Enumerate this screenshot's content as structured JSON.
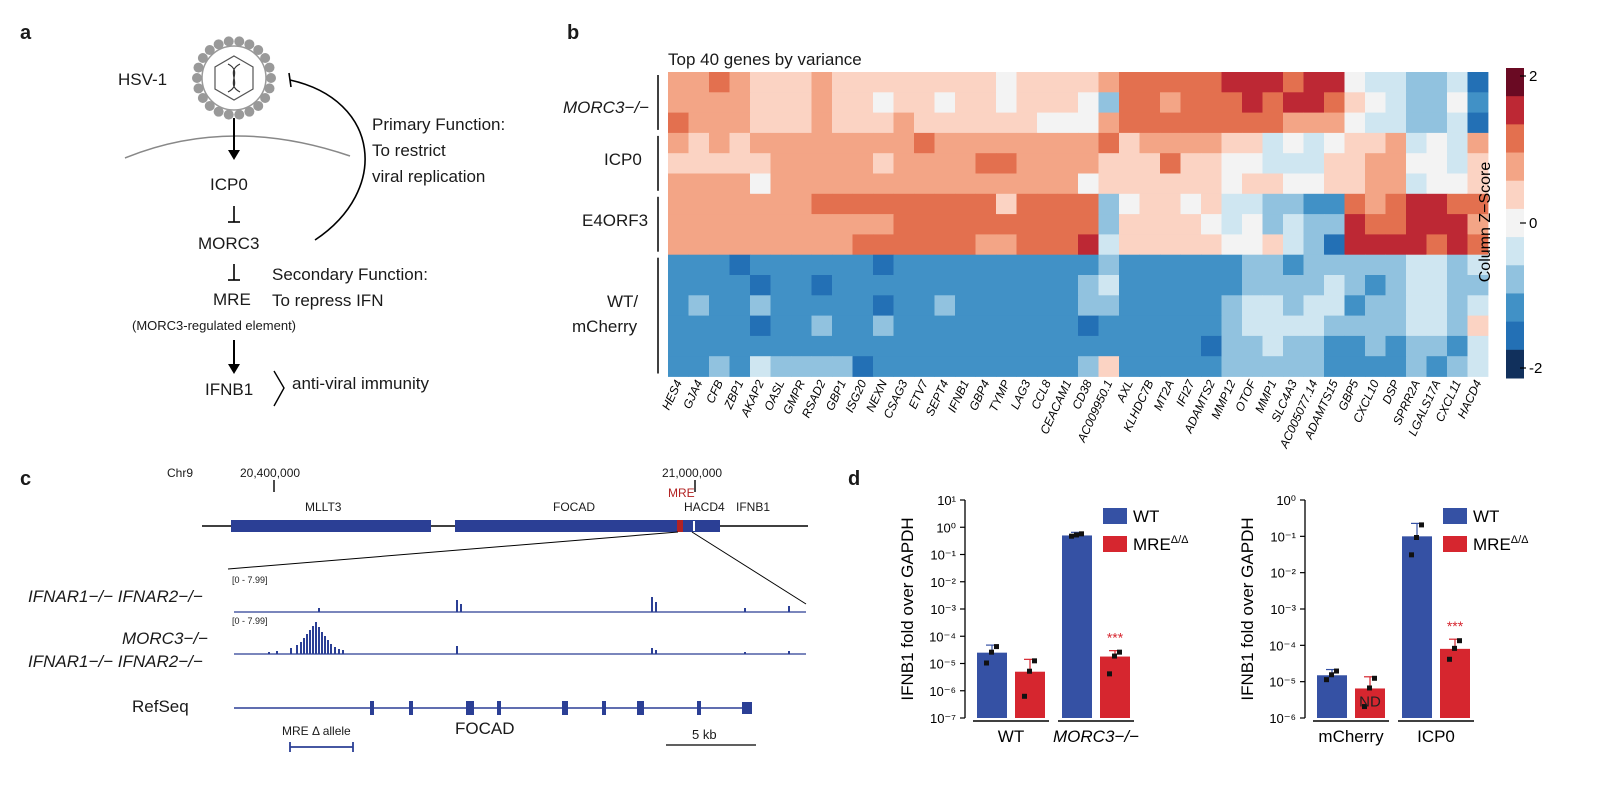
{
  "panel_a": {
    "label": "a",
    "hsv": "HSV-1",
    "icp0": "ICP0",
    "morc3": "MORC3",
    "mre": "MRE",
    "mre_full": "(MORC3-regulated element)",
    "ifnb1": "IFNB1",
    "antiviral": "anti-viral immunity",
    "primary": [
      "Primary Function:",
      "To restrict",
      "viral replication"
    ],
    "secondary": [
      "Secondary Function:",
      "To repress IFN"
    ]
  },
  "panel_b": {
    "label": "b",
    "title": "Top 40 genes by variance",
    "row_groups": [
      "MORC3−/−",
      "ICP0",
      "E4ORF3",
      "WT/",
      "mCherry"
    ],
    "colorbar_title": "Column Z−Score",
    "colorbar_ticks": [
      "2",
      "0",
      "-2"
    ],
    "genes": [
      "HES4",
      "GJA4",
      "CFB",
      "ZBP1",
      "AKAP2",
      "OASL",
      "GMPR",
      "RSAD2",
      "GBP1",
      "ISG20",
      "NEXN",
      "CSAG3",
      "ETV7",
      "SEPT4",
      "IFNB1",
      "GBP4",
      "TYMP",
      "LAG3",
      "CCL8",
      "CEACAM1",
      "CD38",
      "AC009950.1",
      "AXL",
      "KLHDC7B",
      "MT2A",
      "IFI27",
      "ADAMTS2",
      "MMP12",
      "OTOF",
      "MMP1",
      "SLC4A3",
      "AC005077.14",
      "ADAMTS15",
      "GBP5",
      "CXCL10",
      "DSP",
      "SPRR2A",
      "LGALS17A",
      "CXCL11",
      "HACD4"
    ]
  },
  "chart_data": [
    {
      "type": "heatmap",
      "title": "Top 40 genes by variance",
      "rows": 15,
      "columns": [
        "HES4",
        "GJA4",
        "CFB",
        "ZBP1",
        "AKAP2",
        "OASL",
        "GMPR",
        "RSAD2",
        "GBP1",
        "ISG20",
        "NEXN",
        "CSAG3",
        "ETV7",
        "SEPT4",
        "IFNB1",
        "GBP4",
        "TYMP",
        "LAG3",
        "CCL8",
        "CEACAM1",
        "CD38",
        "AC009950.1",
        "AXL",
        "KLHDC7B",
        "MT2A",
        "IFI27",
        "ADAMTS2",
        "MMP12",
        "OTOF",
        "MMP1",
        "SLC4A3",
        "AC005077.14",
        "ADAMTS15",
        "GBP5",
        "CXCL10",
        "DSP",
        "SPRR2A",
        "LGALS17A",
        "CXCL11",
        "HACD4"
      ],
      "row_groups": [
        {
          "name": "MORC3−/−",
          "rows": 3
        },
        {
          "name": "ICP0",
          "rows": 3
        },
        {
          "name": "E4ORF3",
          "rows": 3
        },
        {
          "name": "WT/ mCherry",
          "rows": 6
        }
      ],
      "scale": [
        -2,
        2
      ],
      "values": [
        [
          1,
          1,
          1.5,
          1,
          0.5,
          0.5,
          0.5,
          1,
          0.5,
          0.5,
          0.5,
          0.5,
          0.5,
          0.5,
          0.5,
          0.5,
          0,
          0.5,
          0.5,
          0.5,
          0.5,
          1,
          1.5,
          1.5,
          1.5,
          1.5,
          1.5,
          2,
          2,
          2,
          1.5,
          2,
          2,
          0,
          -0.5,
          -0.5,
          -1,
          -1,
          -0.5,
          -2
        ],
        [
          1,
          1,
          1,
          1,
          0.5,
          0.5,
          0.5,
          1,
          0.5,
          0.5,
          0,
          0.5,
          0.5,
          0,
          0.5,
          0.5,
          0,
          0.5,
          0.5,
          0.5,
          0,
          -1,
          1.5,
          1.5,
          1,
          1.5,
          1.5,
          1.5,
          2,
          1.5,
          2,
          2,
          1.5,
          0.5,
          0,
          -0.5,
          -1,
          -1,
          0,
          -1.5
        ],
        [
          1.5,
          1,
          1,
          1,
          0.5,
          0.5,
          0.5,
          1,
          0.5,
          0.5,
          0.5,
          1,
          0.5,
          0.5,
          0.5,
          0.5,
          0.5,
          0.5,
          0,
          0,
          0,
          1,
          1.5,
          1.5,
          1.5,
          1.5,
          1.5,
          1.5,
          1.5,
          1.5,
          1,
          1,
          1,
          0,
          -0.5,
          -0.5,
          -1,
          -1,
          -0.5,
          -2
        ],
        [
          1,
          0.5,
          1,
          0.5,
          1,
          1,
          1,
          1,
          1,
          1,
          1,
          1,
          1.5,
          1,
          1,
          1,
          1,
          1,
          1,
          1,
          1,
          1.5,
          0.5,
          1,
          1,
          1,
          1,
          0.5,
          0.5,
          -0.5,
          0,
          -0.5,
          0,
          0.5,
          0.5,
          1,
          -0.5,
          0,
          -0.5,
          1
        ],
        [
          0.5,
          0.5,
          0.5,
          0.5,
          0.5,
          1,
          1,
          1,
          1,
          1,
          0.5,
          1,
          1,
          1,
          1,
          1.5,
          1.5,
          1,
          1,
          1,
          1,
          0.5,
          0.5,
          0.5,
          1.5,
          0.5,
          0.5,
          0,
          0,
          -0.5,
          -0.5,
          -0.5,
          0.5,
          0.5,
          1,
          1,
          0,
          0,
          -0.5,
          0.5
        ],
        [
          1,
          1,
          1,
          1,
          0,
          1,
          1,
          1,
          1,
          1,
          1,
          1,
          1,
          1,
          1,
          1,
          1,
          1,
          1,
          1,
          0,
          0.5,
          0.5,
          0.5,
          0.5,
          0.5,
          0.5,
          0,
          0.5,
          0.5,
          0,
          0,
          0.5,
          0.5,
          1,
          1,
          -0.5,
          0,
          0,
          0.5
        ],
        [
          1,
          1,
          1,
          1,
          1,
          1,
          1,
          1.5,
          1.5,
          1.5,
          1.5,
          1.5,
          1.5,
          1.5,
          1.5,
          1.5,
          0.5,
          1.5,
          1.5,
          1.5,
          1.5,
          -1,
          0,
          0.5,
          0.5,
          0,
          0.5,
          -0.5,
          -0.5,
          -1,
          -1,
          -1.5,
          -1.5,
          1.5,
          1,
          1.5,
          2,
          2,
          1.5,
          1.5
        ],
        [
          1,
          1,
          1,
          1,
          1,
          1,
          1,
          1,
          1,
          1,
          1,
          1.5,
          1.5,
          1.5,
          1.5,
          1.5,
          1.5,
          1.5,
          1.5,
          1.5,
          1.5,
          -1,
          0.5,
          0.5,
          0.5,
          0.5,
          0,
          -0.5,
          0,
          -1,
          -0.5,
          -1,
          -1,
          2,
          1.5,
          1.5,
          2,
          2,
          2,
          1
        ],
        [
          1,
          1,
          1,
          1,
          1,
          1,
          1,
          1,
          1,
          1.5,
          1.5,
          1.5,
          1.5,
          1.5,
          1.5,
          1,
          1,
          1.5,
          1.5,
          1.5,
          2,
          -0.5,
          0.5,
          0.5,
          0.5,
          0.5,
          0.5,
          0,
          0,
          0.5,
          -0.5,
          -1,
          -2,
          2,
          2,
          2,
          2,
          1.5,
          2,
          1.5
        ],
        [
          -1.5,
          -1.5,
          -1.5,
          -2,
          -1.5,
          -1.5,
          -1.5,
          -1.5,
          -1.5,
          -1.5,
          -2,
          -1.5,
          -1.5,
          -1.5,
          -1.5,
          -1.5,
          -1.5,
          -1.5,
          -1.5,
          -1.5,
          -1.5,
          -1,
          -1.5,
          -1.5,
          -1.5,
          -1.5,
          -1.5,
          -1.5,
          -1,
          -1,
          -1.5,
          -1,
          -1,
          -1,
          -1,
          -1,
          -0.5,
          -0.5,
          -1,
          -0.5
        ],
        [
          -1.5,
          -1.5,
          -1.5,
          -1.5,
          -2,
          -1.5,
          -1.5,
          -2,
          -1.5,
          -1.5,
          -1.5,
          -1.5,
          -1.5,
          -1.5,
          -1.5,
          -1.5,
          -1.5,
          -1.5,
          -1.5,
          -1.5,
          -1,
          -0.5,
          -1.5,
          -1.5,
          -1.5,
          -1.5,
          -1.5,
          -1.5,
          -1,
          -1,
          -1,
          -1,
          -0.5,
          -1,
          -1.5,
          -1,
          -0.5,
          -0.5,
          -1,
          -1
        ],
        [
          -1.5,
          -1,
          -1.5,
          -1.5,
          -1,
          -1.5,
          -1.5,
          -1.5,
          -1.5,
          -1.5,
          -2,
          -1.5,
          -1.5,
          -1,
          -1.5,
          -1.5,
          -1.5,
          -1.5,
          -1.5,
          -1.5,
          -1,
          -1,
          -1.5,
          -1.5,
          -1.5,
          -1.5,
          -1.5,
          -1,
          -0.5,
          -0.5,
          -1,
          -0.5,
          -0.5,
          -1.5,
          -1,
          -1,
          -0.5,
          -0.5,
          -1,
          -0.5
        ],
        [
          -1.5,
          -1.5,
          -1.5,
          -1.5,
          -2,
          -1.5,
          -1.5,
          -1,
          -1.5,
          -1.5,
          -1,
          -1.5,
          -1.5,
          -1.5,
          -1.5,
          -1.5,
          -1.5,
          -1.5,
          -1.5,
          -1.5,
          -2,
          -1.5,
          -1.5,
          -1.5,
          -1.5,
          -1.5,
          -1.5,
          -1,
          -0.5,
          -0.5,
          -0.5,
          -0.5,
          -1,
          -1,
          -1,
          -1,
          -0.5,
          -0.5,
          -1,
          0.5
        ],
        [
          -1.5,
          -1.5,
          -1.5,
          -1.5,
          -1.5,
          -1.5,
          -1.5,
          -1.5,
          -1.5,
          -1.5,
          -1.5,
          -1.5,
          -1.5,
          -1.5,
          -1.5,
          -1.5,
          -1.5,
          -1.5,
          -1.5,
          -1.5,
          -1.5,
          -1.5,
          -1.5,
          -1.5,
          -1.5,
          -1.5,
          -2,
          -1,
          -1,
          -0.5,
          -1,
          -1,
          -1.5,
          -1.5,
          -1,
          -1.5,
          -1,
          -1,
          -1.5,
          -0.5
        ],
        [
          -1.5,
          -1.5,
          -1,
          -1.5,
          -0.5,
          -1,
          -1,
          -1,
          -1,
          -2,
          -1.5,
          -1.5,
          -1.5,
          -1.5,
          -1.5,
          -1.5,
          -1.5,
          -1.5,
          -1.5,
          -1.5,
          -1,
          0.5,
          -1.5,
          -1.5,
          -1.5,
          -1.5,
          -1.5,
          -1,
          -1,
          -1,
          -1,
          -1,
          -1.5,
          -1.5,
          -1.5,
          -1.5,
          -1,
          -1.5,
          -1,
          -0.5
        ]
      ]
    },
    {
      "type": "bar",
      "ylabel": "IFNB1 fold over GAPDH",
      "yscale": "log",
      "ylim": [
        1e-07,
        10
      ],
      "ytick_labels": [
        "10⁻⁷",
        "10⁻⁶",
        "10⁻⁵",
        "10⁻⁴",
        "10⁻³",
        "10⁻²",
        "10⁻¹",
        "10⁰",
        "10¹"
      ],
      "categories": [
        "WT",
        "MORC3−/−"
      ],
      "series": [
        {
          "name": "WT",
          "color": "#3551a4",
          "values": [
            2.5e-05,
            0.5
          ],
          "points": [
            [
              1e-05,
              2.5e-05,
              4e-05
            ],
            [
              0.45,
              0.5,
              0.55
            ]
          ]
        },
        {
          "name": "MREΔ/Δ",
          "color": "#d6262f",
          "values": [
            5e-06,
            1.8e-05
          ],
          "points": [
            [
              6e-07,
              5e-06,
              1.2e-05
            ],
            [
              4e-06,
              1.8e-05,
              2.5e-05
            ]
          ]
        }
      ],
      "annotations": [
        {
          "category": "MORC3−/−",
          "series": "MREΔ/Δ",
          "text": "***"
        }
      ]
    },
    {
      "type": "bar",
      "ylabel": "IFNB1 fold over GAPDH",
      "yscale": "log",
      "ylim": [
        1e-06,
        1
      ],
      "ytick_labels": [
        "10⁻⁶",
        "10⁻⁵",
        "10⁻⁴",
        "10⁻³",
        "10⁻²",
        "10⁻¹",
        "10⁰"
      ],
      "categories": [
        "mCherry",
        "ICP0"
      ],
      "series": [
        {
          "name": "WT",
          "color": "#3551a4",
          "values": [
            1.5e-05,
            0.1
          ],
          "points": [
            [
              1.1e-05,
              1.5e-05,
              1.9e-05
            ],
            [
              0.03,
              0.09,
              0.2
            ]
          ]
        },
        {
          "name": "MREΔ/Δ",
          "color": "#d6262f",
          "values": [
            6.5e-06,
            8e-05
          ],
          "points": [
            [
              2e-06,
              6.5e-06,
              1.2e-05
            ],
            [
              4e-05,
              8e-05,
              0.00013
            ]
          ]
        }
      ],
      "annotations": [
        {
          "category": "mCherry",
          "series": "MREΔ/Δ",
          "text": "ND"
        },
        {
          "category": "ICP0",
          "series": "MREΔ/Δ",
          "text": "***"
        }
      ]
    }
  ],
  "panel_c": {
    "label": "c",
    "chrom": "Chr9",
    "pos1": "20,400,000",
    "pos2": "21,000,000",
    "mre": "MRE",
    "genes": [
      "MLLT3",
      "FOCAD",
      "HACD4",
      "IFNB1"
    ],
    "track1_name": "IFNAR1−/− IFNAR2−/−",
    "track2_name_1": "MORC3−/−",
    "track2_name_2": "IFNAR1−/− IFNAR2−/−",
    "range": "[0 - 7.99]",
    "refseq": "RefSeq",
    "focad": "FOCAD",
    "mre_allele": "MRE Δ allele",
    "scale": "5 kb"
  },
  "panel_d": {
    "label": "d",
    "legend_wt": "WT",
    "legend_mre": "MRE",
    "legend_mre_sup": "Δ/Δ"
  },
  "colors": {
    "heat_neg": [
      "#11305c",
      "#2370b5",
      "#4191c6",
      "#91c2df",
      "#cfe6f1"
    ],
    "heat_zero": "#f3f3f3",
    "heat_pos": [
      "#fbd3c3",
      "#f3a586",
      "#e3704f",
      "#bd2834",
      "#6a0a23"
    ],
    "blue": "#3551a4",
    "red": "#d6262f",
    "navy": "#2b3f95",
    "mre_red": "#b22222"
  }
}
